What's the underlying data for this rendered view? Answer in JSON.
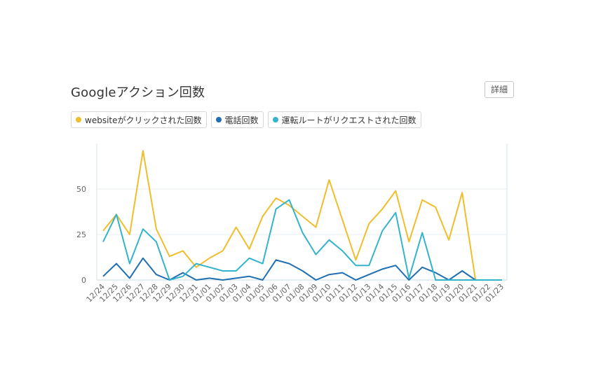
{
  "header": {
    "title": "Googleアクション回数",
    "detail_label": "詳細"
  },
  "legend": [
    {
      "label": "websiteがクリックされた回数",
      "color": "#f0bd2b"
    },
    {
      "label": "電話回数",
      "color": "#1f6fb2"
    },
    {
      "label": "運転ルートがリクエストされた回数",
      "color": "#34b3cc"
    }
  ],
  "chart_data": {
    "type": "line",
    "title": "Googleアクション回数",
    "xlabel": "",
    "ylabel": "",
    "ylim": [
      0,
      75
    ],
    "yticks": [
      0,
      25,
      50
    ],
    "grid": true,
    "legend_position": "top-left",
    "categories": [
      "12/24",
      "12/25",
      "12/26",
      "12/27",
      "12/28",
      "12/29",
      "12/30",
      "12/31",
      "01/01",
      "01/02",
      "01/03",
      "01/04",
      "01/05",
      "01/06",
      "01/07",
      "01/08",
      "01/09",
      "01/10",
      "01/11",
      "01/12",
      "01/13",
      "01/14",
      "01/15",
      "01/16",
      "01/17",
      "01/18",
      "01/19",
      "01/20",
      "01/21",
      "01/22",
      "01/23"
    ],
    "series": [
      {
        "name": "websiteがクリックされた回数",
        "color": "#f0bd2b",
        "values": [
          27,
          36,
          25,
          71,
          28,
          13,
          16,
          7,
          12,
          16,
          29,
          17,
          35,
          45,
          41,
          35,
          29,
          55,
          33,
          11,
          31,
          39,
          49,
          21,
          44,
          40,
          22,
          48,
          0,
          0,
          0
        ]
      },
      {
        "name": "電話回数",
        "color": "#1f6fb2",
        "values": [
          2,
          9,
          1,
          12,
          3,
          0,
          4,
          0,
          1,
          0,
          1,
          2,
          0,
          11,
          9,
          5,
          0,
          3,
          4,
          0,
          3,
          6,
          8,
          0,
          7,
          4,
          0,
          5,
          0,
          0,
          0
        ]
      },
      {
        "name": "運転ルートがリクエストされた回数",
        "color": "#34b3cc",
        "values": [
          21,
          36,
          9,
          28,
          21,
          0,
          2,
          9,
          7,
          5,
          5,
          12,
          9,
          39,
          44,
          26,
          14,
          22,
          16,
          8,
          8,
          27,
          37,
          1,
          26,
          0,
          0,
          0,
          0,
          0,
          0
        ]
      }
    ]
  }
}
